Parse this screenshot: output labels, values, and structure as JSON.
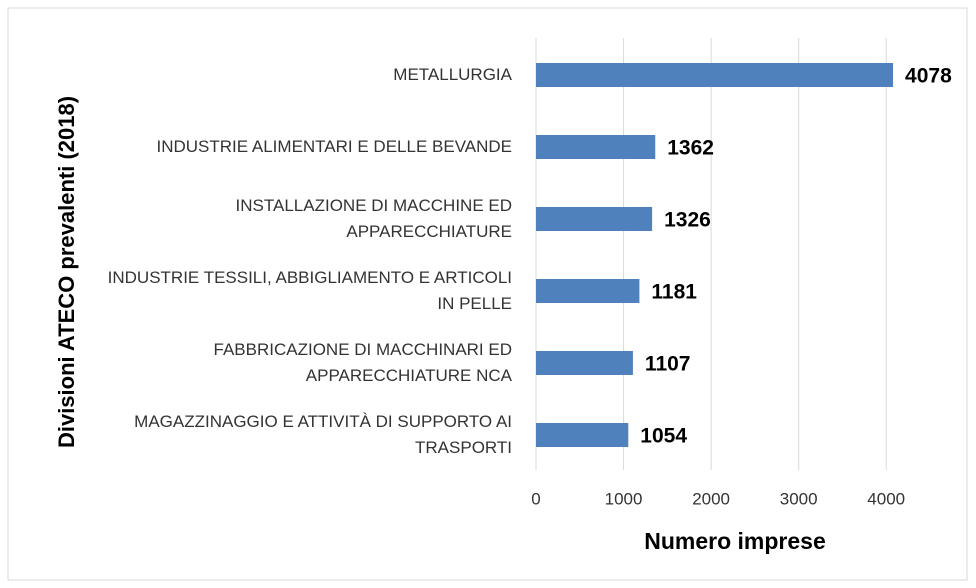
{
  "chart_data": {
    "type": "bar",
    "orientation": "horizontal",
    "categories": [
      "METALLURGIA",
      "INDUSTRIE ALIMENTARI E DELLE BEVANDE",
      "INSTALLAZIONE DI MACCHINE ED APPARECCHIATURE",
      "INDUSTRIE TESSILI, ABBIGLIAMENTO E ARTICOLI IN PELLE",
      "FABBRICAZIONE DI MACCHINARI ED APPARECCHIATURE NCA",
      "MAGAZZINAGGIO E ATTIVITÀ DI SUPPORTO AI TRASPORTI"
    ],
    "values": [
      4078,
      1362,
      1326,
      1181,
      1107,
      1054
    ],
    "color": "#4f81bd",
    "xlabel": "Numero imprese",
    "ylabel": "Divisioni ATECO prevalenti (2018)",
    "xlim": [
      0,
      4500
    ],
    "xticks": [
      0,
      1000,
      2000,
      3000,
      4000
    ],
    "grid": true
  }
}
